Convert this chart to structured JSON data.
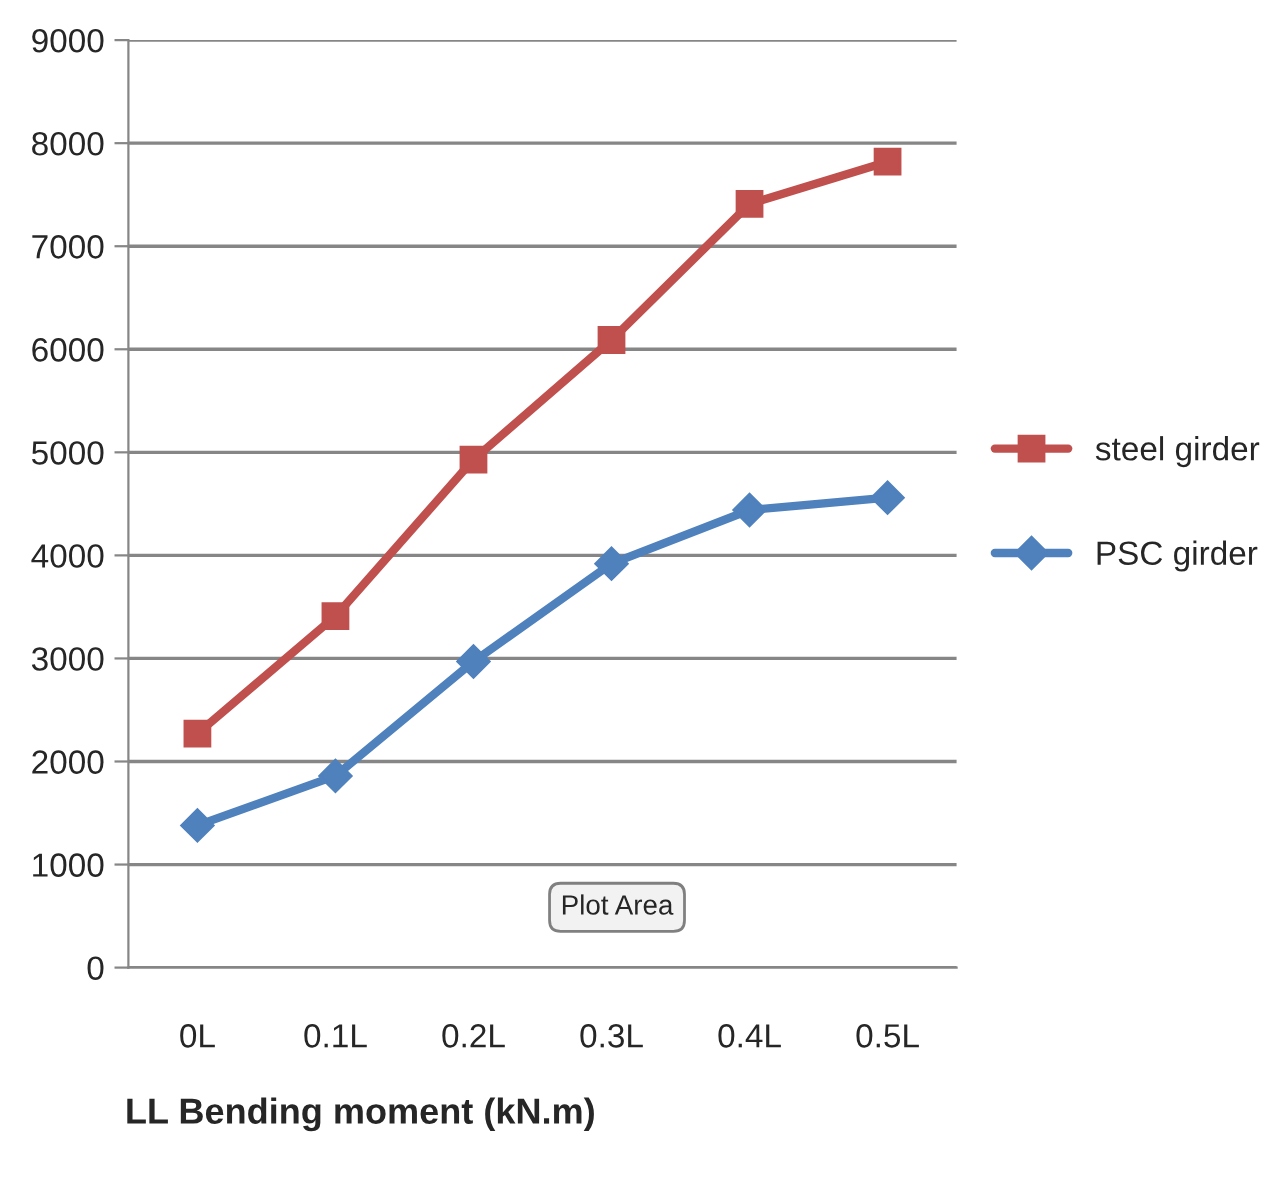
{
  "chart_data": {
    "type": "line",
    "xlabel": "LL Bending moment (kN.m)",
    "categories": [
      "0L",
      "0.1L",
      "0.2L",
      "0.3L",
      "0.4L",
      "0.5L"
    ],
    "series": [
      {
        "name": "steel girder",
        "color": "#c0504d",
        "marker": "square",
        "values": [
          2270,
          3410,
          4930,
          6090,
          7410,
          7820
        ]
      },
      {
        "name": "PSC girder",
        "color": "#4f81bd",
        "marker": "diamond",
        "values": [
          1380,
          1860,
          2970,
          3920,
          4440,
          4560
        ]
      }
    ],
    "ylim": [
      0,
      9000
    ],
    "yticks": [
      0,
      1000,
      2000,
      3000,
      4000,
      5000,
      6000,
      7000,
      8000,
      9000
    ],
    "grid": "y",
    "legend": "right",
    "line_style": "solid",
    "annotations": [
      "Plot Area"
    ]
  }
}
